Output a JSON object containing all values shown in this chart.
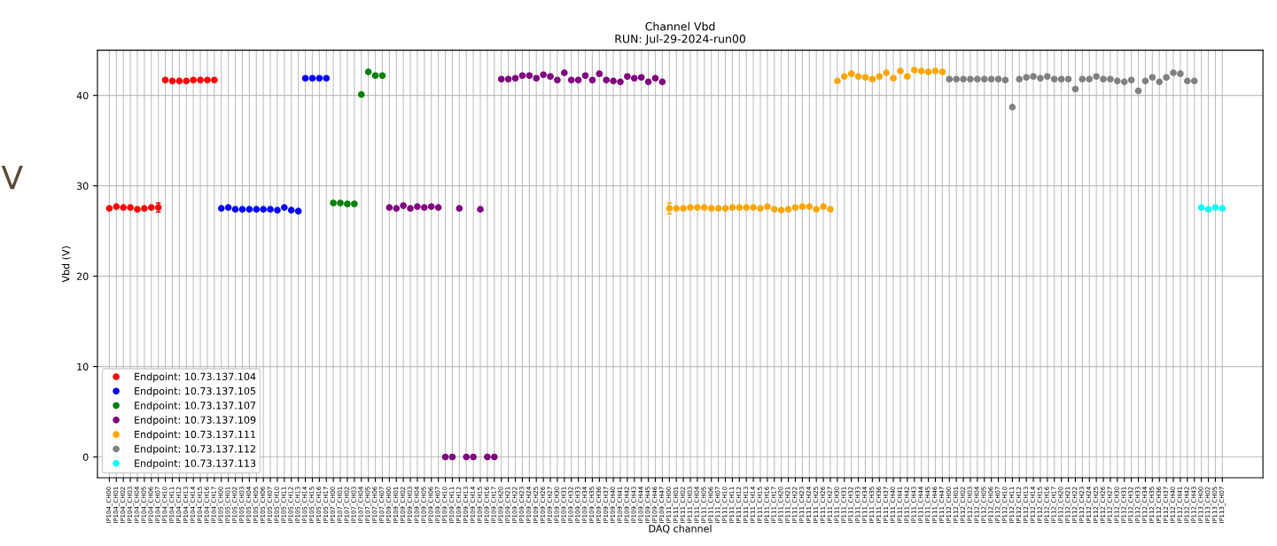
{
  "chart_data": {
    "type": "scatter",
    "title": "Channel Vbd",
    "subtitle": "RUN: Jul-29-2024-run00",
    "xlabel": "DAQ channel",
    "ylabel": "Vbd (V)",
    "annotations": [
      "V"
    ],
    "categories": [
      "IP104_CH00",
      "IP104_CH01",
      "IP104_CH02",
      "IP104_CH03",
      "IP104_CH04",
      "IP104_CH05",
      "IP104_CH06",
      "IP104_CH07",
      "IP104_CH10",
      "IP104_CH11",
      "IP104_CH12",
      "IP104_CH13",
      "IP104_CH14",
      "IP104_CH15",
      "IP104_CH16",
      "IP104_CH17",
      "IP105_CH00",
      "IP105_CH01",
      "IP105_CH02",
      "IP105_CH03",
      "IP105_CH04",
      "IP105_CH05",
      "IP105_CH06",
      "IP105_CH07",
      "IP105_CH10",
      "IP105_CH11",
      "IP105_CH12",
      "IP105_CH13",
      "IP105_CH14",
      "IP105_CH15",
      "IP105_CH16",
      "IP105_CH17",
      "IP107_CH00",
      "IP107_CH01",
      "IP107_CH02",
      "IP107_CH03",
      "IP107_CH04",
      "IP107_CH05",
      "IP107_CH06",
      "IP107_CH07",
      "IP109_CH00",
      "IP109_CH01",
      "IP109_CH02",
      "IP109_CH03",
      "IP109_CH04",
      "IP109_CH05",
      "IP109_CH06",
      "IP109_CH07",
      "IP109_CH10",
      "IP109_CH11",
      "IP109_CH12",
      "IP109_CH13",
      "IP109_CH14",
      "IP109_CH15",
      "IP109_CH16",
      "IP109_CH17",
      "IP109_CH20",
      "IP109_CH21",
      "IP109_CH22",
      "IP109_CH23",
      "IP109_CH24",
      "IP109_CH25",
      "IP109_CH26",
      "IP109_CH27",
      "IP109_CH30",
      "IP109_CH31",
      "IP109_CH32",
      "IP109_CH33",
      "IP109_CH34",
      "IP109_CH35",
      "IP109_CH36",
      "IP109_CH37",
      "IP109_CH40",
      "IP109_CH41",
      "IP109_CH42",
      "IP109_CH43",
      "IP109_CH44",
      "IP109_CH45",
      "IP109_CH46",
      "IP109_CH47",
      "IP111_CH00",
      "IP111_CH01",
      "IP111_CH02",
      "IP111_CH03",
      "IP111_CH04",
      "IP111_CH05",
      "IP111_CH06",
      "IP111_CH07",
      "IP111_CH10",
      "IP111_CH11",
      "IP111_CH12",
      "IP111_CH13",
      "IP111_CH14",
      "IP111_CH15",
      "IP111_CH16",
      "IP111_CH17",
      "IP111_CH20",
      "IP111_CH21",
      "IP111_CH22",
      "IP111_CH23",
      "IP111_CH24",
      "IP111_CH25",
      "IP111_CH26",
      "IP111_CH27",
      "IP111_CH30",
      "IP111_CH31",
      "IP111_CH32",
      "IP111_CH33",
      "IP111_CH34",
      "IP111_CH35",
      "IP111_CH36",
      "IP111_CH37",
      "IP111_CH40",
      "IP111_CH41",
      "IP111_CH42",
      "IP111_CH43",
      "IP111_CH44",
      "IP111_CH45",
      "IP111_CH46",
      "IP111_CH47",
      "IP112_CH00",
      "IP112_CH01",
      "IP112_CH02",
      "IP112_CH03",
      "IP112_CH04",
      "IP112_CH05",
      "IP112_CH06",
      "IP112_CH07",
      "IP112_CH10",
      "IP112_CH11",
      "IP112_CH12",
      "IP112_CH13",
      "IP112_CH14",
      "IP112_CH15",
      "IP112_CH16",
      "IP112_CH17",
      "IP112_CH20",
      "IP112_CH21",
      "IP112_CH22",
      "IP112_CH23",
      "IP112_CH24",
      "IP112_CH25",
      "IP112_CH26",
      "IP112_CH27",
      "IP112_CH30",
      "IP112_CH31",
      "IP112_CH32",
      "IP112_CH33",
      "IP112_CH34",
      "IP112_CH35",
      "IP112_CH36",
      "IP112_CH37",
      "IP112_CH40",
      "IP112_CH41",
      "IP112_CH42",
      "IP112_CH43",
      "IP113_CH00",
      "IP113_CH02",
      "IP113_CH05",
      "IP113_CH07"
    ],
    "series": [
      {
        "name": "Endpoint: 10.73.137.104",
        "color": "#ff0000",
        "values": [
          27.5,
          27.7,
          27.6,
          27.6,
          27.4,
          27.5,
          27.6,
          27.6,
          41.7,
          41.6,
          41.6,
          41.6,
          41.7,
          41.7,
          41.7,
          41.7,
          null,
          null,
          null,
          null,
          null,
          null,
          null,
          null,
          null,
          null,
          null,
          null,
          null,
          null,
          null,
          null,
          null,
          null,
          null,
          null,
          null,
          null,
          null,
          null,
          null,
          null,
          null,
          null,
          null,
          null,
          null,
          null,
          null,
          null,
          null,
          null,
          null,
          null,
          null,
          null,
          null,
          null,
          null,
          null,
          null,
          null,
          null,
          null,
          null,
          null,
          null,
          null,
          null,
          null,
          null,
          null,
          null,
          null,
          null,
          null,
          null,
          null,
          null,
          null,
          null,
          null,
          null,
          null,
          null,
          null,
          null,
          null,
          null,
          null,
          null,
          null,
          null,
          null,
          null,
          null,
          null,
          null,
          null,
          null,
          null,
          null,
          null,
          null,
          null,
          null,
          null,
          null,
          null,
          null,
          null,
          null,
          null,
          null,
          null,
          null,
          null,
          null,
          null,
          null,
          null,
          null,
          null,
          null,
          null,
          null,
          null,
          null,
          null,
          null,
          null,
          null,
          null,
          null,
          null,
          null,
          null,
          null,
          null,
          null,
          null,
          null,
          null,
          null,
          null,
          null,
          null,
          null,
          null,
          null,
          null,
          null,
          null,
          null,
          null,
          null,
          null,
          null,
          null,
          null
        ],
        "errors": [
          null,
          null,
          null,
          null,
          null,
          null,
          null,
          0.5,
          null,
          null,
          null,
          null,
          null,
          null,
          null,
          null,
          null,
          null,
          null,
          null,
          null,
          null,
          null,
          null,
          null,
          null,
          null,
          null,
          null,
          null,
          null,
          null,
          null,
          null,
          null,
          null,
          null,
          null,
          null,
          null,
          null,
          null,
          null,
          null,
          null,
          null,
          null,
          null,
          null,
          null,
          null,
          null,
          null,
          null,
          null,
          null,
          null,
          null,
          null,
          null,
          null,
          null,
          null,
          null,
          null,
          null,
          null,
          null,
          null,
          null,
          null,
          null,
          null,
          null,
          null,
          null,
          null,
          null,
          null,
          null,
          null,
          null,
          null,
          null,
          null,
          null,
          null,
          null,
          null,
          null,
          null,
          null,
          null,
          null,
          null,
          null,
          null,
          null,
          null,
          null,
          null,
          null,
          null,
          null,
          null,
          null,
          null,
          null,
          null,
          null,
          null,
          null,
          null,
          null,
          null,
          null,
          null,
          null,
          null,
          null,
          null,
          null,
          null,
          null,
          null,
          null,
          null,
          null,
          null,
          null,
          null,
          null,
          null,
          null,
          null,
          null,
          null,
          null,
          null,
          null,
          null,
          null,
          null,
          null,
          null,
          null,
          null,
          null,
          null,
          null,
          null,
          null,
          null,
          null,
          null,
          null,
          null,
          null,
          null,
          null
        ]
      },
      {
        "name": "Endpoint: 10.73.137.105",
        "color": "#0000ff",
        "values": [
          null,
          null,
          null,
          null,
          null,
          null,
          null,
          null,
          null,
          null,
          null,
          null,
          null,
          null,
          null,
          null,
          27.5,
          27.6,
          27.4,
          27.4,
          27.4,
          27.4,
          27.4,
          27.4,
          27.3,
          27.6,
          27.3,
          27.2,
          41.9,
          41.9,
          41.9,
          41.9,
          null,
          null,
          null,
          null,
          null,
          null,
          null,
          null,
          null,
          null,
          null,
          null,
          null,
          null,
          null,
          null,
          null,
          null,
          null,
          null,
          null,
          null,
          null,
          null,
          null,
          null,
          null,
          null,
          null,
          null,
          null,
          null,
          null,
          null,
          null,
          null,
          null,
          null,
          null,
          null,
          null,
          null,
          null,
          null,
          null,
          null,
          null,
          null,
          null,
          null,
          null,
          null,
          null,
          null,
          null,
          null,
          null,
          null,
          null,
          null,
          null,
          null,
          null,
          null,
          null,
          null,
          null,
          null,
          null,
          null,
          null,
          null,
          null,
          null,
          null,
          null,
          null,
          null,
          null,
          null,
          null,
          null,
          null,
          null,
          null,
          null,
          null,
          null,
          null,
          null,
          null,
          null,
          null,
          null,
          null,
          null,
          null,
          null,
          null,
          null,
          null,
          null,
          null,
          null,
          null,
          null,
          null,
          null,
          null,
          null,
          null,
          null,
          null,
          null,
          null,
          null,
          null,
          null,
          null,
          null,
          null,
          null,
          null,
          null,
          null,
          null,
          null,
          null
        ]
      },
      {
        "name": "Endpoint: 10.73.137.107",
        "color": "#008000",
        "values": [
          null,
          null,
          null,
          null,
          null,
          null,
          null,
          null,
          null,
          null,
          null,
          null,
          null,
          null,
          null,
          null,
          null,
          null,
          null,
          null,
          null,
          null,
          null,
          null,
          null,
          null,
          null,
          null,
          null,
          null,
          null,
          null,
          28.1,
          28.1,
          28.0,
          28.0,
          40.1,
          42.6,
          42.2,
          42.2,
          null,
          null,
          null,
          null,
          null,
          null,
          null,
          null,
          null,
          null,
          null,
          null,
          null,
          null,
          null,
          null,
          null,
          null,
          null,
          null,
          null,
          null,
          null,
          null,
          null,
          null,
          null,
          null,
          null,
          null,
          null,
          null,
          null,
          null,
          null,
          null,
          null,
          null,
          null,
          null,
          null,
          null,
          null,
          null,
          null,
          null,
          null,
          null,
          null,
          null,
          null,
          null,
          null,
          null,
          null,
          null,
          null,
          null,
          null,
          null,
          null,
          null,
          null,
          null,
          null,
          null,
          null,
          null,
          null,
          null,
          null,
          null,
          null,
          null,
          null,
          null,
          null,
          null,
          null,
          null,
          null,
          null,
          null,
          null,
          null,
          null,
          null,
          null,
          null,
          null,
          null,
          null,
          null,
          null,
          null,
          null,
          null,
          null,
          null,
          null,
          null,
          null,
          null,
          null,
          null,
          null,
          null,
          null,
          null,
          null,
          null,
          null,
          null,
          null,
          null,
          null,
          null,
          null,
          null,
          null
        ]
      },
      {
        "name": "Endpoint: 10.73.137.109",
        "color": "#800080",
        "values": [
          null,
          null,
          null,
          null,
          null,
          null,
          null,
          null,
          null,
          null,
          null,
          null,
          null,
          null,
          null,
          null,
          null,
          null,
          null,
          null,
          null,
          null,
          null,
          null,
          null,
          null,
          null,
          null,
          null,
          null,
          null,
          null,
          null,
          null,
          null,
          null,
          null,
          null,
          null,
          null,
          27.6,
          27.5,
          27.8,
          27.5,
          27.7,
          27.6,
          27.7,
          27.6,
          0,
          0,
          27.5,
          0,
          0,
          27.4,
          0,
          0,
          41.8,
          41.8,
          41.9,
          42.2,
          42.2,
          41.9,
          42.3,
          42.1,
          41.7,
          42.5,
          41.7,
          41.7,
          42.2,
          41.7,
          42.4,
          41.7,
          41.6,
          41.5,
          42.1,
          41.9,
          42.0,
          41.5,
          41.9,
          41.5,
          null,
          null,
          null,
          null,
          null,
          null,
          null,
          null,
          null,
          null,
          null,
          null,
          null,
          null,
          null,
          null,
          null,
          null,
          null,
          null,
          null,
          null,
          null,
          null,
          null,
          null,
          null,
          null,
          null,
          null,
          null,
          null,
          null,
          null,
          null,
          null,
          null,
          null,
          null,
          null,
          null,
          null,
          null,
          null,
          null,
          null,
          null,
          null,
          null,
          null,
          null,
          null,
          null,
          null,
          null,
          null,
          null,
          null,
          null,
          null,
          null,
          null,
          null,
          null,
          null,
          null,
          null,
          null,
          null,
          null,
          null,
          null,
          null,
          null,
          null,
          null,
          null,
          null,
          null,
          null
        ]
      },
      {
        "name": "Endpoint: 10.73.137.111",
        "color": "#ffa500",
        "values": [
          null,
          null,
          null,
          null,
          null,
          null,
          null,
          null,
          null,
          null,
          null,
          null,
          null,
          null,
          null,
          null,
          null,
          null,
          null,
          null,
          null,
          null,
          null,
          null,
          null,
          null,
          null,
          null,
          null,
          null,
          null,
          null,
          null,
          null,
          null,
          null,
          null,
          null,
          null,
          null,
          null,
          null,
          null,
          null,
          null,
          null,
          null,
          null,
          null,
          null,
          null,
          null,
          null,
          null,
          null,
          null,
          null,
          null,
          null,
          null,
          null,
          null,
          null,
          null,
          null,
          null,
          null,
          null,
          null,
          null,
          null,
          null,
          null,
          null,
          null,
          null,
          null,
          null,
          null,
          null,
          27.5,
          27.5,
          27.5,
          27.6,
          27.6,
          27.6,
          27.5,
          27.5,
          27.5,
          27.6,
          27.6,
          27.6,
          27.6,
          27.5,
          27.7,
          27.4,
          27.3,
          27.4,
          27.6,
          27.7,
          27.7,
          27.4,
          27.7,
          27.4,
          41.6,
          42.1,
          42.4,
          42.1,
          42.0,
          41.8,
          42.1,
          42.5,
          41.9,
          42.7,
          42.1,
          42.8,
          42.7,
          42.6,
          42.7,
          42.6,
          null,
          null,
          null,
          null,
          null,
          null,
          null,
          null,
          null,
          null,
          null,
          null,
          null,
          null,
          null,
          null,
          null,
          null,
          null,
          null,
          null,
          null,
          null,
          null,
          null,
          null,
          null,
          null,
          null,
          null,
          null,
          null,
          null,
          null,
          null,
          null,
          null,
          null,
          null,
          null
        ],
        "errors": [
          null,
          null,
          null,
          null,
          null,
          null,
          null,
          null,
          null,
          null,
          null,
          null,
          null,
          null,
          null,
          null,
          null,
          null,
          null,
          null,
          null,
          null,
          null,
          null,
          null,
          null,
          null,
          null,
          null,
          null,
          null,
          null,
          null,
          null,
          null,
          null,
          null,
          null,
          null,
          null,
          null,
          null,
          null,
          null,
          null,
          null,
          null,
          null,
          null,
          null,
          null,
          null,
          null,
          null,
          null,
          null,
          null,
          null,
          null,
          null,
          null,
          null,
          null,
          null,
          null,
          null,
          null,
          null,
          null,
          null,
          null,
          null,
          null,
          null,
          null,
          null,
          null,
          null,
          null,
          null,
          0.6,
          null,
          null,
          null,
          null,
          null,
          null,
          null,
          null,
          null,
          null,
          null,
          null,
          null,
          null,
          null,
          null,
          null,
          null,
          null,
          null,
          null,
          null,
          null,
          null,
          null,
          null,
          null,
          null,
          null,
          null,
          null,
          null,
          null,
          null,
          null,
          null,
          null,
          null,
          null,
          null,
          null,
          null,
          null,
          null,
          null,
          null,
          null,
          null,
          null,
          null,
          null,
          null,
          null,
          null,
          null,
          null,
          null,
          null,
          null,
          null,
          null,
          null,
          null,
          null,
          null,
          null,
          null,
          null,
          null,
          null,
          null,
          null,
          null,
          null,
          null,
          null,
          null,
          null,
          null
        ]
      },
      {
        "name": "Endpoint: 10.73.137.112",
        "color": "#808080",
        "values": [
          null,
          null,
          null,
          null,
          null,
          null,
          null,
          null,
          null,
          null,
          null,
          null,
          null,
          null,
          null,
          null,
          null,
          null,
          null,
          null,
          null,
          null,
          null,
          null,
          null,
          null,
          null,
          null,
          null,
          null,
          null,
          null,
          null,
          null,
          null,
          null,
          null,
          null,
          null,
          null,
          null,
          null,
          null,
          null,
          null,
          null,
          null,
          null,
          null,
          null,
          null,
          null,
          null,
          null,
          null,
          null,
          null,
          null,
          null,
          null,
          null,
          null,
          null,
          null,
          null,
          null,
          null,
          null,
          null,
          null,
          null,
          null,
          null,
          null,
          null,
          null,
          null,
          null,
          null,
          null,
          null,
          null,
          null,
          null,
          null,
          null,
          null,
          null,
          null,
          null,
          null,
          null,
          null,
          null,
          null,
          null,
          null,
          null,
          null,
          null,
          null,
          null,
          null,
          null,
          null,
          null,
          null,
          null,
          null,
          null,
          null,
          null,
          null,
          null,
          null,
          null,
          null,
          null,
          null,
          null,
          41.8,
          41.8,
          41.8,
          41.8,
          41.8,
          41.8,
          41.8,
          41.8,
          41.7,
          38.7,
          41.8,
          42.0,
          42.1,
          41.9,
          42.1,
          41.8,
          41.8,
          41.8,
          40.7,
          41.8,
          41.8,
          42.1,
          41.8,
          41.8,
          41.6,
          41.5,
          41.7,
          40.5,
          41.6,
          42.0,
          41.5,
          42.0,
          42.5,
          42.4,
          41.6,
          41.6,
          null,
          null,
          null,
          null
        ]
      },
      {
        "name": "Endpoint: 10.73.137.113",
        "color": "#00ffff",
        "values": [
          null,
          null,
          null,
          null,
          null,
          null,
          null,
          null,
          null,
          null,
          null,
          null,
          null,
          null,
          null,
          null,
          null,
          null,
          null,
          null,
          null,
          null,
          null,
          null,
          null,
          null,
          null,
          null,
          null,
          null,
          null,
          null,
          null,
          null,
          null,
          null,
          null,
          null,
          null,
          null,
          null,
          null,
          null,
          null,
          null,
          null,
          null,
          null,
          null,
          null,
          null,
          null,
          null,
          null,
          null,
          null,
          null,
          null,
          null,
          null,
          null,
          null,
          null,
          null,
          null,
          null,
          null,
          null,
          null,
          null,
          null,
          null,
          null,
          null,
          null,
          null,
          null,
          null,
          null,
          null,
          null,
          null,
          null,
          null,
          null,
          null,
          null,
          null,
          null,
          null,
          null,
          null,
          null,
          null,
          null,
          null,
          null,
          null,
          null,
          null,
          null,
          null,
          null,
          null,
          null,
          null,
          null,
          null,
          null,
          null,
          null,
          null,
          null,
          null,
          null,
          null,
          null,
          null,
          null,
          null,
          null,
          null,
          null,
          null,
          null,
          null,
          null,
          null,
          null,
          null,
          null,
          null,
          null,
          null,
          null,
          null,
          null,
          null,
          null,
          null,
          null,
          null,
          null,
          null,
          null,
          null,
          null,
          null,
          null,
          null,
          null,
          null,
          null,
          null,
          null,
          null,
          27.6,
          27.4,
          27.6,
          27.5
        ]
      }
    ],
    "ylim": [
      -2.3,
      45
    ],
    "yticks": [
      0,
      10,
      20,
      30,
      40
    ],
    "grid": true,
    "legend": "bottom left",
    "marker": "circle"
  }
}
